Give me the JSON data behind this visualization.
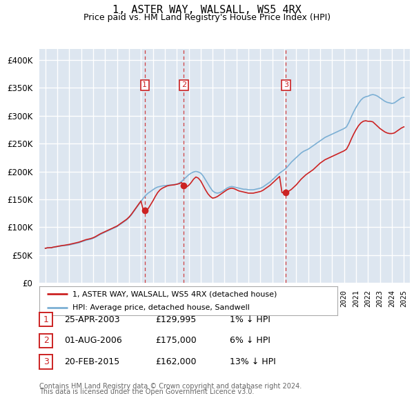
{
  "title": "1, ASTER WAY, WALSALL, WS5 4RX",
  "subtitle": "Price paid vs. HM Land Registry's House Price Index (HPI)",
  "legend_line1": "1, ASTER WAY, WALSALL, WS5 4RX (detached house)",
  "legend_line2": "HPI: Average price, detached house, Sandwell",
  "ytick_values": [
    0,
    50000,
    100000,
    150000,
    200000,
    250000,
    300000,
    350000,
    400000
  ],
  "ylim": [
    0,
    420000
  ],
  "xlim_start": 1994.5,
  "xlim_end": 2025.5,
  "background_color": "#dde6f0",
  "grid_color": "#ffffff",
  "transactions": [
    {
      "num": 1,
      "date": "25-APR-2003",
      "price": 129995,
      "year": 2003.32,
      "hpi_pct": "1",
      "direction": "↓"
    },
    {
      "num": 2,
      "date": "01-AUG-2006",
      "price": 175000,
      "year": 2006.58,
      "hpi_pct": "6",
      "direction": "↓"
    },
    {
      "num": 3,
      "date": "20-FEB-2015",
      "price": 162000,
      "year": 2015.13,
      "hpi_pct": "13",
      "direction": "↓"
    }
  ],
  "footer_line1": "Contains HM Land Registry data © Crown copyright and database right 2024.",
  "footer_line2": "This data is licensed under the Open Government Licence v3.0.",
  "hpi_color": "#7bafd4",
  "price_color": "#cc2222",
  "marker_box_color": "#cc2222",
  "hpi_data": [
    [
      1995.0,
      62000
    ],
    [
      1995.1,
      62500
    ],
    [
      1995.2,
      63000
    ],
    [
      1995.3,
      63200
    ],
    [
      1995.4,
      63000
    ],
    [
      1995.5,
      62800
    ],
    [
      1995.6,
      63500
    ],
    [
      1995.7,
      64000
    ],
    [
      1995.8,
      64200
    ],
    [
      1995.9,
      64500
    ],
    [
      1996.0,
      65000
    ],
    [
      1996.2,
      65800
    ],
    [
      1996.4,
      66500
    ],
    [
      1996.6,
      67000
    ],
    [
      1996.8,
      67500
    ],
    [
      1997.0,
      68000
    ],
    [
      1997.2,
      69000
    ],
    [
      1997.4,
      70000
    ],
    [
      1997.6,
      71000
    ],
    [
      1997.8,
      72000
    ],
    [
      1998.0,
      73500
    ],
    [
      1998.2,
      75000
    ],
    [
      1998.4,
      76500
    ],
    [
      1998.6,
      77500
    ],
    [
      1998.8,
      78500
    ],
    [
      1999.0,
      80000
    ],
    [
      1999.2,
      82000
    ],
    [
      1999.4,
      84500
    ],
    [
      1999.6,
      87000
    ],
    [
      1999.8,
      89000
    ],
    [
      2000.0,
      91000
    ],
    [
      2000.2,
      93000
    ],
    [
      2000.4,
      95000
    ],
    [
      2000.6,
      97000
    ],
    [
      2000.8,
      99000
    ],
    [
      2001.0,
      101000
    ],
    [
      2001.2,
      104000
    ],
    [
      2001.4,
      107000
    ],
    [
      2001.6,
      110000
    ],
    [
      2001.8,
      113000
    ],
    [
      2002.0,
      117000
    ],
    [
      2002.2,
      122000
    ],
    [
      2002.4,
      128000
    ],
    [
      2002.6,
      134000
    ],
    [
      2002.8,
      140000
    ],
    [
      2003.0,
      146000
    ],
    [
      2003.2,
      152000
    ],
    [
      2003.4,
      157000
    ],
    [
      2003.6,
      161000
    ],
    [
      2003.8,
      164000
    ],
    [
      2004.0,
      167000
    ],
    [
      2004.2,
      170000
    ],
    [
      2004.4,
      172000
    ],
    [
      2004.6,
      173000
    ],
    [
      2004.8,
      174000
    ],
    [
      2005.0,
      174500
    ],
    [
      2005.2,
      175000
    ],
    [
      2005.4,
      175500
    ],
    [
      2005.6,
      176000
    ],
    [
      2005.8,
      176500
    ],
    [
      2006.0,
      177000
    ],
    [
      2006.2,
      179000
    ],
    [
      2006.4,
      182000
    ],
    [
      2006.6,
      186000
    ],
    [
      2006.8,
      190000
    ],
    [
      2007.0,
      194000
    ],
    [
      2007.2,
      197000
    ],
    [
      2007.4,
      199000
    ],
    [
      2007.6,
      200000
    ],
    [
      2007.8,
      199000
    ],
    [
      2008.0,
      197000
    ],
    [
      2008.2,
      192000
    ],
    [
      2008.4,
      185000
    ],
    [
      2008.6,
      178000
    ],
    [
      2008.8,
      171000
    ],
    [
      2009.0,
      165000
    ],
    [
      2009.2,
      162000
    ],
    [
      2009.4,
      161000
    ],
    [
      2009.6,
      162000
    ],
    [
      2009.8,
      164000
    ],
    [
      2010.0,
      167000
    ],
    [
      2010.2,
      170000
    ],
    [
      2010.4,
      172000
    ],
    [
      2010.6,
      173000
    ],
    [
      2010.8,
      172000
    ],
    [
      2011.0,
      171000
    ],
    [
      2011.2,
      170000
    ],
    [
      2011.4,
      169000
    ],
    [
      2011.6,
      168000
    ],
    [
      2011.8,
      168000
    ],
    [
      2012.0,
      167000
    ],
    [
      2012.2,
      167000
    ],
    [
      2012.4,
      167000
    ],
    [
      2012.6,
      168000
    ],
    [
      2012.8,
      169000
    ],
    [
      2013.0,
      170000
    ],
    [
      2013.2,
      172000
    ],
    [
      2013.4,
      175000
    ],
    [
      2013.6,
      178000
    ],
    [
      2013.8,
      181000
    ],
    [
      2014.0,
      185000
    ],
    [
      2014.2,
      189000
    ],
    [
      2014.4,
      193000
    ],
    [
      2014.6,
      197000
    ],
    [
      2014.8,
      200000
    ],
    [
      2015.0,
      203000
    ],
    [
      2015.2,
      207000
    ],
    [
      2015.4,
      212000
    ],
    [
      2015.6,
      217000
    ],
    [
      2015.8,
      221000
    ],
    [
      2016.0,
      225000
    ],
    [
      2016.2,
      229000
    ],
    [
      2016.4,
      233000
    ],
    [
      2016.6,
      236000
    ],
    [
      2016.8,
      238000
    ],
    [
      2017.0,
      240000
    ],
    [
      2017.2,
      243000
    ],
    [
      2017.4,
      246000
    ],
    [
      2017.6,
      249000
    ],
    [
      2017.8,
      252000
    ],
    [
      2018.0,
      255000
    ],
    [
      2018.2,
      258000
    ],
    [
      2018.4,
      261000
    ],
    [
      2018.6,
      263000
    ],
    [
      2018.8,
      265000
    ],
    [
      2019.0,
      267000
    ],
    [
      2019.2,
      269000
    ],
    [
      2019.4,
      271000
    ],
    [
      2019.6,
      273000
    ],
    [
      2019.8,
      275000
    ],
    [
      2020.0,
      277000
    ],
    [
      2020.2,
      280000
    ],
    [
      2020.4,
      288000
    ],
    [
      2020.6,
      298000
    ],
    [
      2020.8,
      307000
    ],
    [
      2021.0,
      315000
    ],
    [
      2021.2,
      322000
    ],
    [
      2021.4,
      328000
    ],
    [
      2021.6,
      332000
    ],
    [
      2021.8,
      334000
    ],
    [
      2022.0,
      335000
    ],
    [
      2022.2,
      337000
    ],
    [
      2022.4,
      338000
    ],
    [
      2022.6,
      337000
    ],
    [
      2022.8,
      335000
    ],
    [
      2023.0,
      332000
    ],
    [
      2023.2,
      329000
    ],
    [
      2023.4,
      326000
    ],
    [
      2023.6,
      324000
    ],
    [
      2023.8,
      323000
    ],
    [
      2024.0,
      322000
    ],
    [
      2024.2,
      323000
    ],
    [
      2024.4,
      326000
    ],
    [
      2024.6,
      329000
    ],
    [
      2024.8,
      332000
    ],
    [
      2025.0,
      333000
    ]
  ],
  "price_paid_data": [
    [
      1995.0,
      62000
    ],
    [
      1995.1,
      62500
    ],
    [
      1995.2,
      63000
    ],
    [
      1995.3,
      62800
    ],
    [
      1995.4,
      63200
    ],
    [
      1995.5,
      63000
    ],
    [
      1995.6,
      63800
    ],
    [
      1995.7,
      64200
    ],
    [
      1995.8,
      64500
    ],
    [
      1995.9,
      65000
    ],
    [
      1996.0,
      65500
    ],
    [
      1996.2,
      66200
    ],
    [
      1996.4,
      67000
    ],
    [
      1996.6,
      67500
    ],
    [
      1996.8,
      68200
    ],
    [
      1997.0,
      69000
    ],
    [
      1997.2,
      70000
    ],
    [
      1997.4,
      71000
    ],
    [
      1997.6,
      72000
    ],
    [
      1997.8,
      73000
    ],
    [
      1998.0,
      74500
    ],
    [
      1998.2,
      76000
    ],
    [
      1998.4,
      77500
    ],
    [
      1998.6,
      78500
    ],
    [
      1998.8,
      79500
    ],
    [
      1999.0,
      81000
    ],
    [
      1999.2,
      83000
    ],
    [
      1999.4,
      85500
    ],
    [
      1999.6,
      88000
    ],
    [
      1999.8,
      90000
    ],
    [
      2000.0,
      92000
    ],
    [
      2000.2,
      94000
    ],
    [
      2000.4,
      96000
    ],
    [
      2000.6,
      98000
    ],
    [
      2000.8,
      100000
    ],
    [
      2001.0,
      102000
    ],
    [
      2001.2,
      105000
    ],
    [
      2001.4,
      108000
    ],
    [
      2001.6,
      111000
    ],
    [
      2001.8,
      114000
    ],
    [
      2002.0,
      118000
    ],
    [
      2002.2,
      123000
    ],
    [
      2002.4,
      129000
    ],
    [
      2002.6,
      135000
    ],
    [
      2002.8,
      141000
    ],
    [
      2003.0,
      147000
    ],
    [
      2003.2,
      129995
    ],
    [
      2003.4,
      130000
    ],
    [
      2003.6,
      133000
    ],
    [
      2003.8,
      140000
    ],
    [
      2004.0,
      147000
    ],
    [
      2004.2,
      155000
    ],
    [
      2004.4,
      162000
    ],
    [
      2004.6,
      167000
    ],
    [
      2004.8,
      170000
    ],
    [
      2005.0,
      172000
    ],
    [
      2005.2,
      174000
    ],
    [
      2005.4,
      175000
    ],
    [
      2005.6,
      175500
    ],
    [
      2005.8,
      176000
    ],
    [
      2006.0,
      177000
    ],
    [
      2006.2,
      178000
    ],
    [
      2006.4,
      180000
    ],
    [
      2006.6,
      175000
    ],
    [
      2006.8,
      172000
    ],
    [
      2007.0,
      175000
    ],
    [
      2007.2,
      180000
    ],
    [
      2007.4,
      186000
    ],
    [
      2007.6,
      190000
    ],
    [
      2007.8,
      188000
    ],
    [
      2008.0,
      183000
    ],
    [
      2008.2,
      175000
    ],
    [
      2008.4,
      167000
    ],
    [
      2008.6,
      160000
    ],
    [
      2008.8,
      155000
    ],
    [
      2009.0,
      152000
    ],
    [
      2009.2,
      153000
    ],
    [
      2009.4,
      155000
    ],
    [
      2009.6,
      158000
    ],
    [
      2009.8,
      161000
    ],
    [
      2010.0,
      164000
    ],
    [
      2010.2,
      167000
    ],
    [
      2010.4,
      169000
    ],
    [
      2010.6,
      170000
    ],
    [
      2010.8,
      169000
    ],
    [
      2011.0,
      167000
    ],
    [
      2011.2,
      165000
    ],
    [
      2011.4,
      164000
    ],
    [
      2011.6,
      163000
    ],
    [
      2011.8,
      162000
    ],
    [
      2012.0,
      161000
    ],
    [
      2012.2,
      161000
    ],
    [
      2012.4,
      161000
    ],
    [
      2012.6,
      162000
    ],
    [
      2012.8,
      163000
    ],
    [
      2013.0,
      164000
    ],
    [
      2013.2,
      166000
    ],
    [
      2013.4,
      169000
    ],
    [
      2013.6,
      172000
    ],
    [
      2013.8,
      175000
    ],
    [
      2014.0,
      179000
    ],
    [
      2014.2,
      183000
    ],
    [
      2014.4,
      187000
    ],
    [
      2014.6,
      191000
    ],
    [
      2014.8,
      162000
    ],
    [
      2015.0,
      162000
    ],
    [
      2015.2,
      162000
    ],
    [
      2015.4,
      165000
    ],
    [
      2015.6,
      168000
    ],
    [
      2015.8,
      172000
    ],
    [
      2016.0,
      176000
    ],
    [
      2016.2,
      181000
    ],
    [
      2016.4,
      186000
    ],
    [
      2016.6,
      190000
    ],
    [
      2016.8,
      194000
    ],
    [
      2017.0,
      197000
    ],
    [
      2017.2,
      200000
    ],
    [
      2017.4,
      203000
    ],
    [
      2017.6,
      207000
    ],
    [
      2017.8,
      211000
    ],
    [
      2018.0,
      215000
    ],
    [
      2018.2,
      218000
    ],
    [
      2018.4,
      221000
    ],
    [
      2018.6,
      223000
    ],
    [
      2018.8,
      225000
    ],
    [
      2019.0,
      227000
    ],
    [
      2019.2,
      229000
    ],
    [
      2019.4,
      231000
    ],
    [
      2019.6,
      233000
    ],
    [
      2019.8,
      235000
    ],
    [
      2020.0,
      237000
    ],
    [
      2020.2,
      240000
    ],
    [
      2020.4,
      248000
    ],
    [
      2020.6,
      258000
    ],
    [
      2020.8,
      267000
    ],
    [
      2021.0,
      275000
    ],
    [
      2021.2,
      282000
    ],
    [
      2021.4,
      287000
    ],
    [
      2021.6,
      290000
    ],
    [
      2021.8,
      291000
    ],
    [
      2022.0,
      290000
    ],
    [
      2022.2,
      290000
    ],
    [
      2022.4,
      289000
    ],
    [
      2022.6,
      285000
    ],
    [
      2022.8,
      281000
    ],
    [
      2023.0,
      277000
    ],
    [
      2023.2,
      274000
    ],
    [
      2023.4,
      271000
    ],
    [
      2023.6,
      269000
    ],
    [
      2023.8,
      268000
    ],
    [
      2024.0,
      268000
    ],
    [
      2024.2,
      269000
    ],
    [
      2024.4,
      272000
    ],
    [
      2024.6,
      275000
    ],
    [
      2024.8,
      278000
    ],
    [
      2025.0,
      280000
    ]
  ]
}
